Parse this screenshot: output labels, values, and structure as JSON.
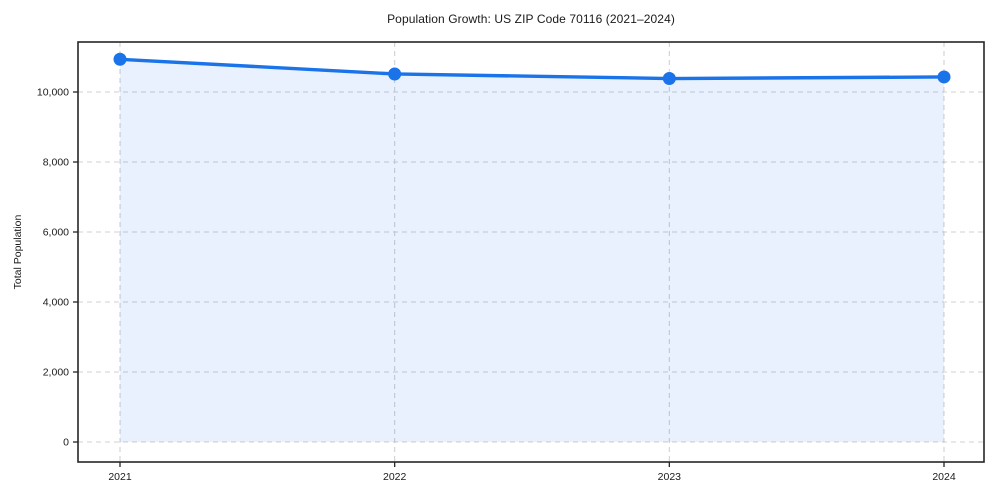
{
  "page": {
    "background": "#ffffff"
  },
  "chart_data": {
    "type": "area",
    "title": "Population Growth: US ZIP Code 70116 (2021–2024)",
    "xlabel": "",
    "ylabel": "Total Population",
    "x": [
      2021,
      2022,
      2023,
      2024
    ],
    "x_tick_labels": [
      "2021",
      "2022",
      "2023",
      "2024"
    ],
    "series": [
      {
        "name": "Total Population",
        "values": [
          10935,
          10515,
          10385,
          10430
        ]
      }
    ],
    "y_ticks": [
      0,
      2000,
      4000,
      6000,
      8000,
      10000
    ],
    "y_tick_labels": [
      "0",
      "2,000",
      "4,000",
      "6,000",
      "8,000",
      "10,000"
    ],
    "ylim": [
      -570,
      11430
    ],
    "grid": true,
    "grid_style": "dashed",
    "legend": false,
    "colors": {
      "line": "#1a73e8",
      "marker": "#1a73e8",
      "fill": "rgba(26,115,232,0.10)",
      "grid": "#d0d0d0",
      "spine": "#262626",
      "tick": "#262626",
      "text": "#1a1a1a"
    }
  }
}
